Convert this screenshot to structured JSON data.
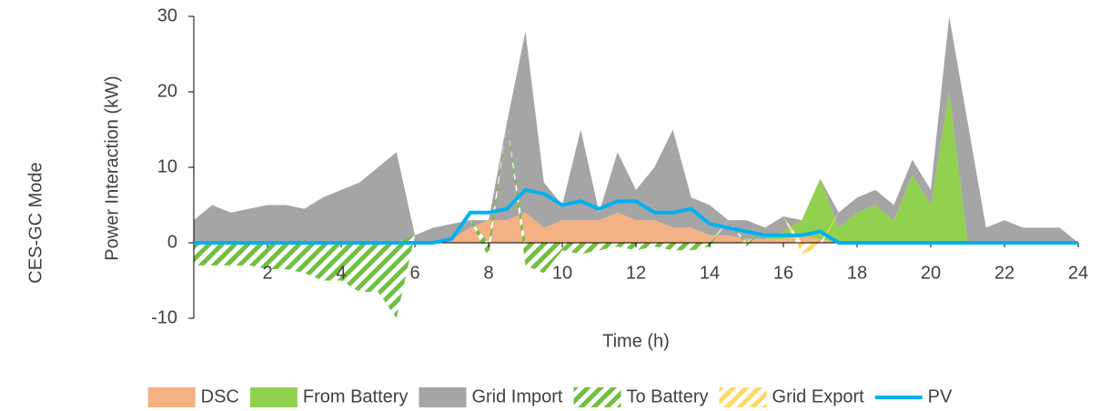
{
  "chart_data": {
    "type": "area",
    "side_label": "CES-GC Mode",
    "y_label": "Power Interaction (kW)",
    "x_label": "Time (h)",
    "xlim": [
      0,
      24
    ],
    "xticks": [
      2,
      4,
      6,
      8,
      10,
      12,
      14,
      16,
      18,
      20,
      22,
      24
    ],
    "ylim": [
      -10,
      30
    ],
    "yticks": [
      -10,
      0,
      10,
      20,
      30
    ],
    "x": [
      0,
      0.5,
      1,
      1.5,
      2,
      2.5,
      3,
      3.5,
      4,
      4.5,
      5,
      5.5,
      6,
      6.5,
      7,
      7.5,
      8,
      8.5,
      9,
      9.5,
      10,
      10.5,
      11,
      11.5,
      12,
      12.5,
      13,
      13.5,
      14,
      14.5,
      15,
      15.5,
      16,
      16.5,
      17,
      17.5,
      18,
      18.5,
      19,
      19.5,
      20,
      20.5,
      21,
      21.5,
      22,
      22.5,
      23,
      23.5,
      24
    ],
    "series": [
      {
        "name": "DSC",
        "color": "#f4b183",
        "type": "area",
        "fill": "solid",
        "values": [
          0,
          0,
          0,
          0,
          0,
          0,
          0,
          0,
          0,
          0,
          0,
          0,
          0,
          0,
          0.5,
          2,
          3,
          3,
          4,
          2,
          3,
          3,
          3,
          4,
          3,
          3,
          2,
          2,
          1,
          1,
          0.5,
          0.5,
          0.5,
          1,
          0.5,
          0,
          0,
          0,
          0,
          0,
          0,
          0,
          0,
          0,
          0,
          0,
          0,
          0,
          0
        ]
      },
      {
        "name": "From Battery",
        "color": "#92d050",
        "type": "area",
        "fill": "solid",
        "values": [
          0,
          0,
          0,
          0,
          0,
          0,
          0,
          0,
          0,
          0,
          0,
          0,
          0,
          0,
          0,
          0,
          0,
          0,
          0,
          0,
          0,
          0,
          0,
          0,
          0,
          0,
          0,
          0,
          0,
          0,
          0,
          0,
          1,
          2,
          8,
          2,
          4,
          5,
          3,
          9,
          5,
          20,
          0,
          0,
          0,
          0,
          0,
          0,
          0
        ]
      },
      {
        "name": "Grid Import",
        "color": "#a5a5a5",
        "type": "area",
        "fill": "solid",
        "values": [
          3,
          5,
          4,
          4.5,
          5,
          5,
          4.5,
          6,
          7,
          8,
          10,
          12,
          1,
          2,
          2,
          1,
          0,
          13,
          24,
          6,
          2,
          12,
          1,
          8,
          4,
          7,
          13,
          4,
          4,
          2,
          2.5,
          1.5,
          2,
          0,
          0,
          2,
          2,
          2,
          2,
          2,
          2,
          10,
          16,
          2,
          3,
          2,
          2,
          2,
          0
        ]
      },
      {
        "name": "To Battery",
        "color": "#70c040",
        "type": "area",
        "fill": "hatched",
        "values": [
          -3,
          -3,
          -3,
          -3,
          -3.5,
          -3.5,
          -4,
          -5,
          -5,
          -6.5,
          -6.5,
          -10,
          0,
          0,
          0,
          0,
          -2,
          0,
          -3,
          -4,
          -1,
          -1.5,
          -1,
          -0.5,
          -1,
          -0.5,
          -1,
          -1,
          -0.5,
          0,
          -0.5,
          0,
          0,
          0,
          0,
          0,
          0,
          0,
          0,
          0,
          0,
          0,
          0,
          0,
          0,
          0,
          0,
          0,
          0
        ]
      },
      {
        "name": "Grid Export",
        "color": "#ffd966",
        "type": "area",
        "fill": "hatched",
        "values": [
          0,
          0,
          0,
          0,
          0,
          0,
          0,
          0,
          0,
          0,
          0,
          0,
          0,
          0,
          0,
          0,
          0,
          0,
          0,
          0,
          0,
          0,
          0,
          0,
          0,
          0,
          0,
          0,
          0,
          0,
          0,
          0,
          0,
          -1.5,
          -0.5,
          0,
          0,
          0,
          0,
          0,
          0,
          0,
          0,
          0,
          0,
          0,
          0,
          0,
          0
        ]
      },
      {
        "name": "PV",
        "color": "#00b0f0",
        "type": "line",
        "values": [
          0,
          0,
          0,
          0,
          0,
          0,
          0,
          0,
          0,
          0,
          0,
          0,
          0,
          0,
          0.5,
          4,
          4,
          4.5,
          7,
          6.5,
          5,
          5.5,
          4.5,
          5.5,
          5.5,
          4,
          4,
          4.5,
          2.5,
          2,
          1.5,
          1,
          1,
          1,
          1.5,
          0,
          0,
          0,
          0,
          0,
          0,
          0,
          0,
          0,
          0,
          0,
          0,
          0,
          0
        ]
      }
    ]
  }
}
